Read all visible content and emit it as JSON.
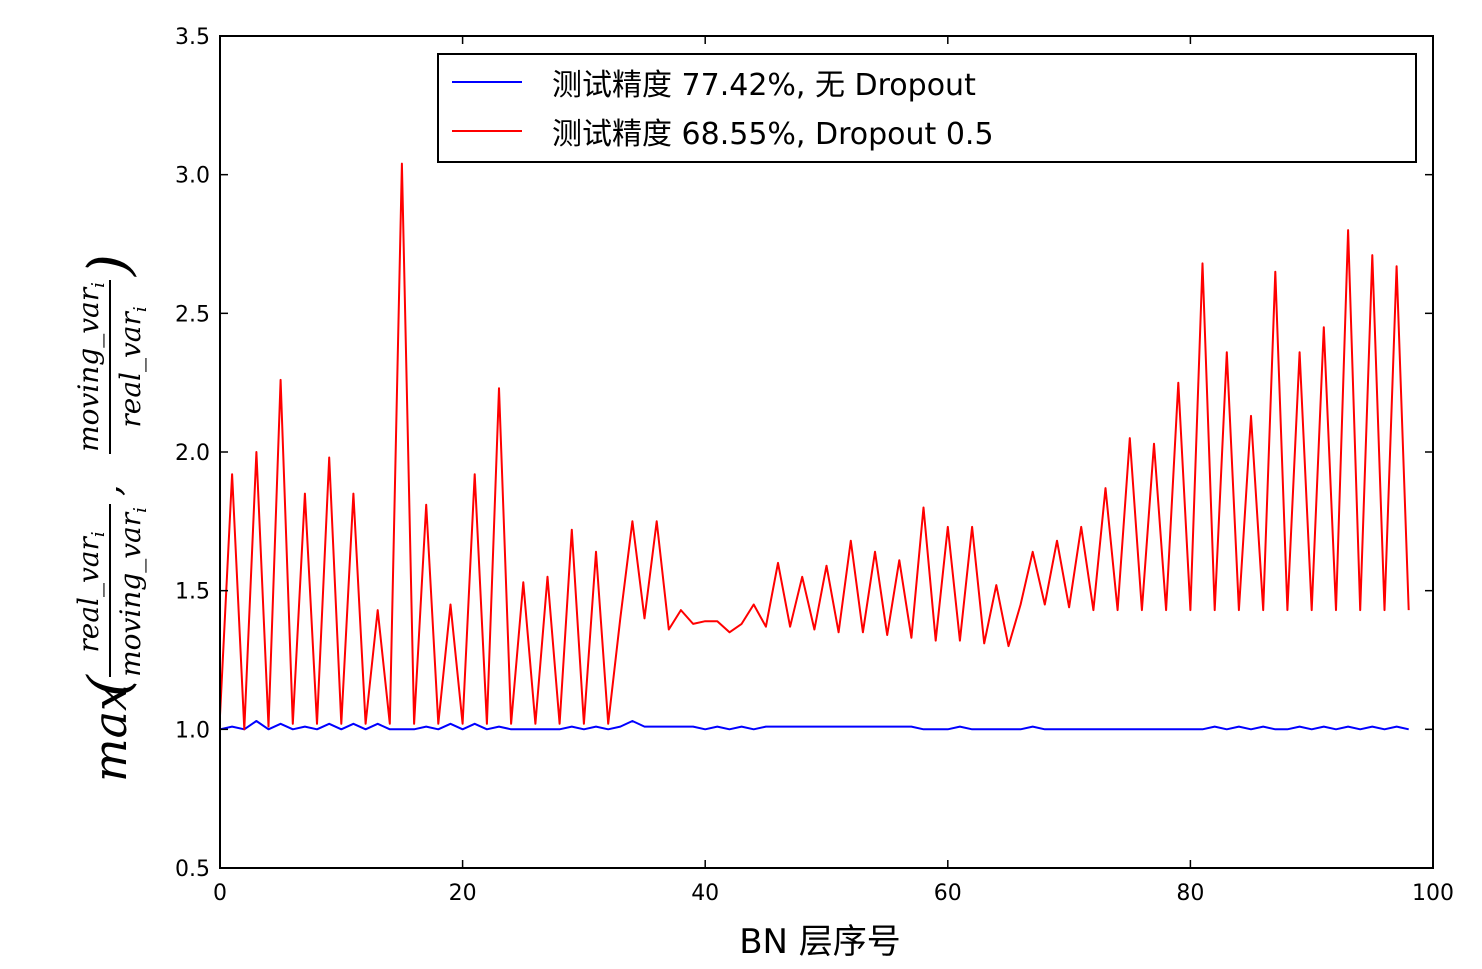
{
  "chart_data": {
    "type": "line",
    "xlabel": "BN 层序号",
    "ylabel": {
      "prefix": "max",
      "frac1": {
        "numerator": "real_var",
        "denominator": "moving_var",
        "sub": "i"
      },
      "frac2": {
        "numerator": "moving_var",
        "denominator": "real_var",
        "sub": "i"
      }
    },
    "xlim": [
      0,
      100
    ],
    "ylim": [
      0.5,
      3.5
    ],
    "xticks": [
      "0",
      "20",
      "40",
      "60",
      "80",
      "100"
    ],
    "yticks": [
      "0.5",
      "1.0",
      "1.5",
      "2.0",
      "2.5",
      "3.0",
      "3.5"
    ],
    "grid": false,
    "legend_position": "upper-center",
    "series": [
      {
        "name": "测试精度 77.42%, 无 Dropout",
        "color": "#0000ff",
        "x": [
          0,
          1,
          2,
          3,
          4,
          5,
          6,
          7,
          8,
          9,
          10,
          11,
          12,
          13,
          14,
          15,
          16,
          17,
          18,
          19,
          20,
          21,
          22,
          23,
          24,
          25,
          26,
          27,
          28,
          29,
          30,
          31,
          32,
          33,
          34,
          35,
          36,
          37,
          38,
          39,
          40,
          41,
          42,
          43,
          44,
          45,
          46,
          47,
          48,
          49,
          50,
          51,
          52,
          53,
          54,
          55,
          56,
          57,
          58,
          59,
          60,
          61,
          62,
          63,
          64,
          65,
          66,
          67,
          68,
          69,
          70,
          71,
          72,
          73,
          74,
          75,
          76,
          77,
          78,
          79,
          80,
          81,
          82,
          83,
          84,
          85,
          86,
          87,
          88,
          89,
          90,
          91,
          92,
          93,
          94,
          95,
          96,
          97,
          98
        ],
        "y": [
          1.0,
          1.01,
          1.0,
          1.03,
          1.0,
          1.02,
          1.0,
          1.01,
          1.0,
          1.02,
          1.0,
          1.02,
          1.0,
          1.02,
          1.0,
          1.0,
          1.0,
          1.01,
          1.0,
          1.02,
          1.0,
          1.02,
          1.0,
          1.01,
          1.0,
          1.0,
          1.0,
          1.0,
          1.0,
          1.01,
          1.0,
          1.01,
          1.0,
          1.01,
          1.03,
          1.01,
          1.01,
          1.01,
          1.01,
          1.01,
          1.0,
          1.01,
          1.0,
          1.01,
          1.0,
          1.01,
          1.01,
          1.01,
          1.01,
          1.01,
          1.01,
          1.01,
          1.01,
          1.01,
          1.01,
          1.01,
          1.01,
          1.01,
          1.0,
          1.0,
          1.0,
          1.01,
          1.0,
          1.0,
          1.0,
          1.0,
          1.0,
          1.01,
          1.0,
          1.0,
          1.0,
          1.0,
          1.0,
          1.0,
          1.0,
          1.0,
          1.0,
          1.0,
          1.0,
          1.0,
          1.0,
          1.0,
          1.01,
          1.0,
          1.01,
          1.0,
          1.01,
          1.0,
          1.0,
          1.01,
          1.0,
          1.01,
          1.0,
          1.01,
          1.0,
          1.01,
          1.0,
          1.01,
          1.0
        ]
      },
      {
        "name": "测试精度 68.55%, Dropout 0.5",
        "color": "#ff0000",
        "x": [
          0,
          1,
          2,
          3,
          4,
          5,
          6,
          7,
          8,
          9,
          10,
          11,
          12,
          13,
          14,
          15,
          16,
          17,
          18,
          19,
          20,
          21,
          22,
          23,
          24,
          25,
          26,
          27,
          28,
          29,
          30,
          31,
          32,
          33,
          34,
          35,
          36,
          37,
          38,
          39,
          40,
          41,
          42,
          43,
          44,
          45,
          46,
          47,
          48,
          49,
          50,
          51,
          52,
          53,
          54,
          55,
          56,
          57,
          58,
          59,
          60,
          61,
          62,
          63,
          64,
          65,
          66,
          67,
          68,
          69,
          70,
          71,
          72,
          73,
          74,
          75,
          76,
          77,
          78,
          79,
          80,
          81,
          82,
          83,
          84,
          85,
          86,
          87,
          88,
          89,
          90,
          91,
          92,
          93,
          94,
          95,
          96,
          97,
          98
        ],
        "y": [
          1.05,
          1.92,
          1.0,
          2.0,
          1.01,
          2.26,
          1.02,
          1.85,
          1.02,
          1.98,
          1.02,
          1.85,
          1.02,
          1.43,
          1.02,
          3.04,
          1.02,
          1.81,
          1.02,
          1.45,
          1.02,
          1.92,
          1.02,
          2.23,
          1.02,
          1.53,
          1.02,
          1.55,
          1.02,
          1.72,
          1.02,
          1.64,
          1.02,
          1.4,
          1.75,
          1.4,
          1.75,
          1.36,
          1.43,
          1.38,
          1.39,
          1.39,
          1.35,
          1.38,
          1.45,
          1.37,
          1.6,
          1.37,
          1.55,
          1.36,
          1.59,
          1.35,
          1.68,
          1.35,
          1.64,
          1.34,
          1.61,
          1.33,
          1.8,
          1.32,
          1.73,
          1.32,
          1.73,
          1.31,
          1.52,
          1.3,
          1.45,
          1.64,
          1.45,
          1.68,
          1.44,
          1.73,
          1.43,
          1.87,
          1.43,
          2.05,
          1.43,
          2.03,
          1.43,
          2.25,
          1.43,
          2.68,
          1.43,
          2.36,
          1.43,
          2.13,
          1.43,
          2.65,
          1.43,
          2.36,
          1.43,
          2.45,
          1.43,
          2.8,
          1.43,
          2.71,
          1.43,
          2.67,
          1.43
        ]
      }
    ]
  }
}
